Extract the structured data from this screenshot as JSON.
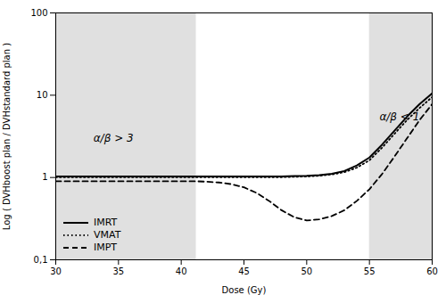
{
  "chart_data": {
    "type": "line",
    "xlabel": "Dose (Gy)",
    "ylabel": "Log ( DVHboost plan / DVHstandard plan )",
    "x": [
      30,
      31,
      32,
      33,
      34,
      35,
      36,
      37,
      38,
      39,
      40,
      41,
      41.2,
      42,
      43,
      44,
      45,
      46,
      47,
      48,
      49,
      50,
      51,
      52,
      53,
      54,
      55,
      56,
      57,
      58,
      59,
      60
    ],
    "series": [
      {
        "name": "IMRT",
        "color": "#000000",
        "line_style": "solid",
        "values": [
          1.03,
          1.03,
          1.03,
          1.03,
          1.03,
          1.03,
          1.03,
          1.03,
          1.03,
          1.03,
          1.03,
          1.03,
          1.03,
          1.03,
          1.03,
          1.03,
          1.03,
          1.03,
          1.03,
          1.03,
          1.04,
          1.05,
          1.07,
          1.11,
          1.2,
          1.4,
          1.75,
          2.5,
          3.7,
          5.5,
          7.8,
          10.5
        ]
      },
      {
        "name": "VMAT",
        "color": "#000000",
        "line_style": "dotted",
        "values": [
          1.01,
          1.01,
          1.01,
          1.01,
          1.01,
          1.01,
          1.01,
          1.01,
          1.01,
          1.01,
          1.01,
          1.01,
          1.01,
          1.01,
          1.01,
          1.01,
          1.01,
          1.01,
          1.01,
          1.01,
          1.02,
          1.03,
          1.05,
          1.09,
          1.16,
          1.32,
          1.62,
          2.3,
          3.4,
          5.0,
          7.0,
          9.5
        ]
      },
      {
        "name": "IMPT",
        "color": "#000000",
        "line_style": "dashed",
        "values": [
          0.9,
          0.9,
          0.9,
          0.9,
          0.9,
          0.9,
          0.9,
          0.9,
          0.9,
          0.9,
          0.9,
          0.9,
          0.9,
          0.89,
          0.87,
          0.83,
          0.76,
          0.65,
          0.52,
          0.4,
          0.33,
          0.3,
          0.31,
          0.34,
          0.4,
          0.52,
          0.72,
          1.1,
          1.8,
          3.0,
          5.0,
          7.8
        ]
      }
    ],
    "xlim": [
      30,
      60
    ],
    "xticks": [
      30,
      35,
      40,
      45,
      50,
      55,
      60
    ],
    "ylim": [
      0.1,
      100
    ],
    "yticks": [
      {
        "value": 0.1,
        "label": "0,1"
      },
      1,
      10,
      100
    ],
    "log": "y",
    "grid": false,
    "legend": "lower left",
    "shaded_regions": [
      {
        "x1": 30,
        "x2": 41.2,
        "color": "#e0e0e0"
      },
      {
        "x1": 55.0,
        "x2": 60,
        "color": "#e0e0e0"
      }
    ],
    "annotations": [
      {
        "text": "α/β > 3",
        "x": 33.0,
        "y": 3.0
      },
      {
        "text": "α/β < 1",
        "x": 55.8,
        "y": 5.5
      }
    ]
  }
}
